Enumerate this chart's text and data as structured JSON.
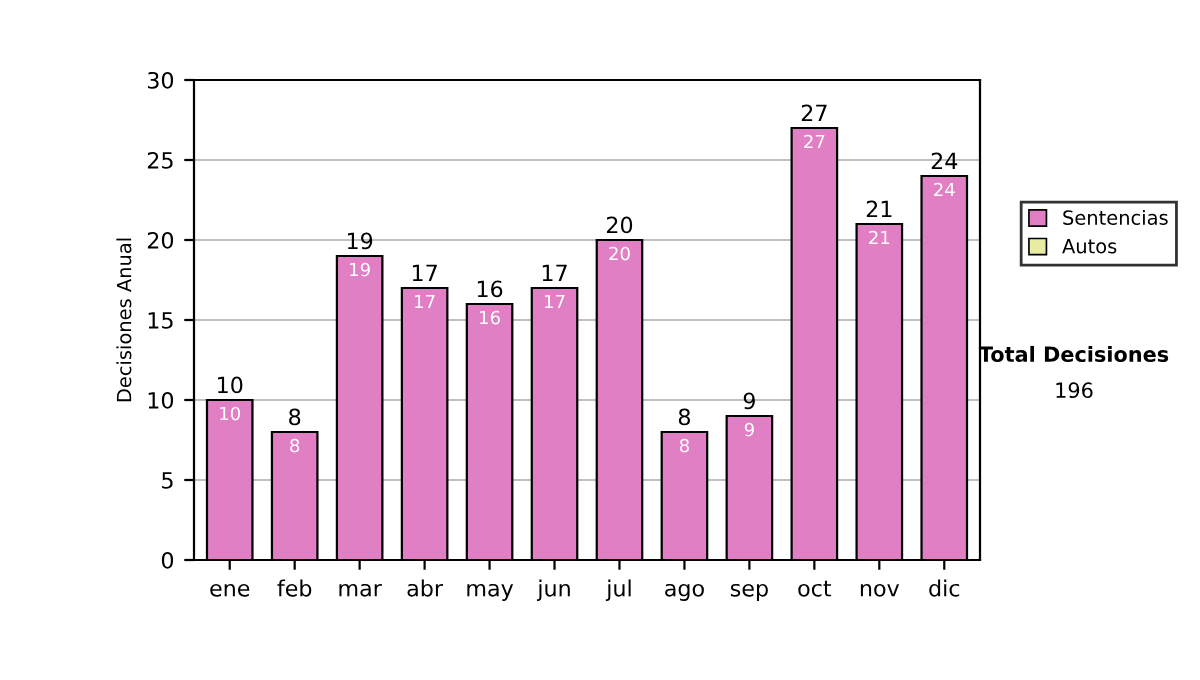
{
  "chart_data": {
    "type": "bar",
    "ylabel": "Decisiones Anual",
    "categories": [
      "ene",
      "feb",
      "mar",
      "abr",
      "may",
      "jun",
      "jul",
      "ago",
      "sep",
      "oct",
      "nov",
      "dic"
    ],
    "series": [
      {
        "name": "Sentencias",
        "color": "#e07fc4",
        "values": [
          10,
          8,
          19,
          17,
          16,
          17,
          20,
          8,
          9,
          27,
          21,
          24
        ],
        "value_labels": [
          "10",
          "8",
          "19",
          "17",
          "16",
          "17",
          "20",
          "8",
          "9",
          "27",
          "21",
          "24"
        ]
      },
      {
        "name": "Autos",
        "color": "#e8eca0",
        "values": [
          0,
          0,
          0,
          0,
          0,
          0,
          0,
          0,
          0,
          0,
          0,
          0
        ]
      }
    ],
    "stacked": true,
    "totals": [
      "10",
      "8",
      "19",
      "17",
      "16",
      "17",
      "20",
      "8",
      "9",
      "27",
      "21",
      "24"
    ],
    "ylim": [
      0,
      30
    ],
    "yticks": [
      0,
      5,
      10,
      15,
      20,
      25,
      30
    ],
    "grid": "y",
    "legend": "right",
    "annotations": [
      "Total Decisiones",
      "196"
    ]
  }
}
